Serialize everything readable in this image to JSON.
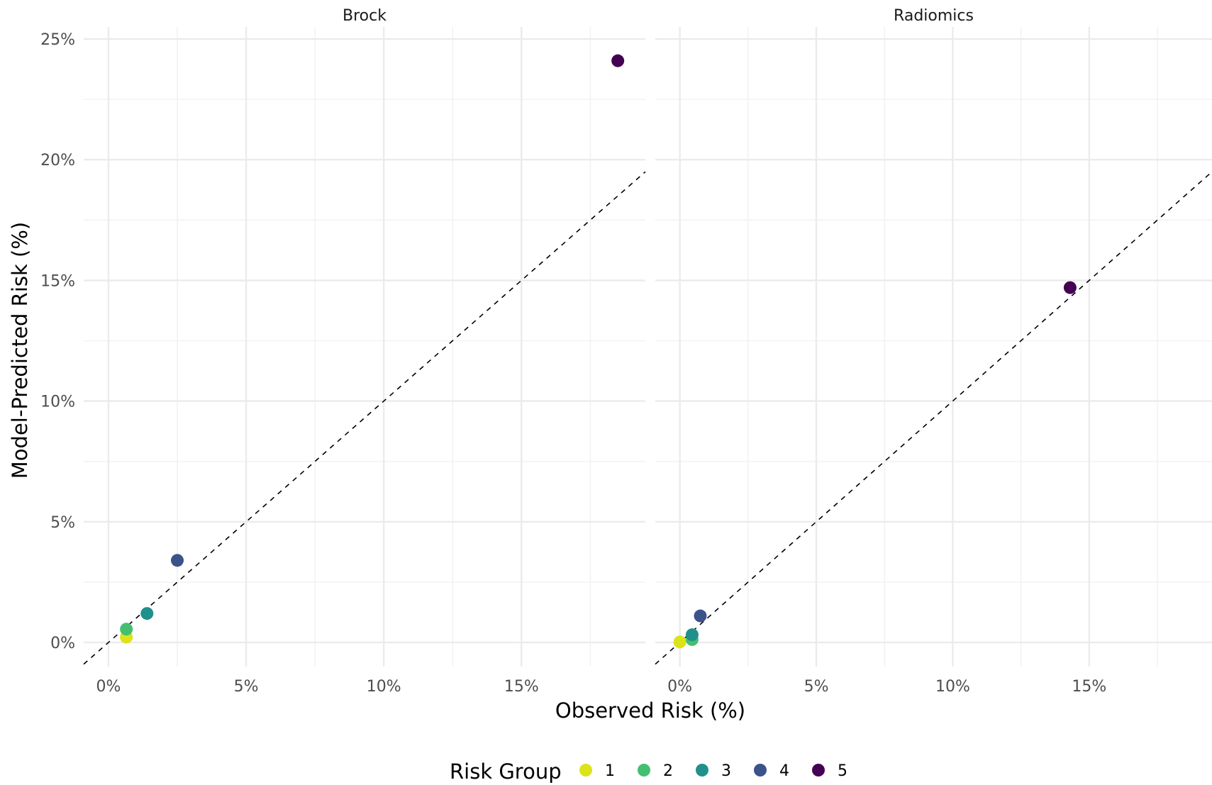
{
  "chart_data": {
    "type": "scatter",
    "x_label": "Observed Risk (%)",
    "y_label": "Model-Predicted Risk (%)",
    "legend_title": "Risk Group",
    "legend_position": "bottom",
    "grid": true,
    "reference_line": "y = x (dashed)",
    "xlim": [
      -0.9,
      19.5
    ],
    "ylim": [
      -1.0,
      25.5
    ],
    "x_ticks": [
      {
        "value": 0,
        "label": "0%"
      },
      {
        "value": 5,
        "label": "5%"
      },
      {
        "value": 10,
        "label": "10%"
      },
      {
        "value": 15,
        "label": "15%"
      }
    ],
    "y_ticks": [
      {
        "value": 0,
        "label": "0%"
      },
      {
        "value": 5,
        "label": "5%"
      },
      {
        "value": 10,
        "label": "10%"
      },
      {
        "value": 15,
        "label": "15%"
      },
      {
        "value": 20,
        "label": "20%"
      },
      {
        "value": 25,
        "label": "25%"
      }
    ],
    "groups": [
      {
        "name": "1",
        "color": "#dce319"
      },
      {
        "name": "2",
        "color": "#44bf70"
      },
      {
        "name": "3",
        "color": "#21908c"
      },
      {
        "name": "4",
        "color": "#3b528b"
      },
      {
        "name": "5",
        "color": "#440154"
      }
    ],
    "panels": [
      {
        "title": "Brock",
        "points": [
          {
            "group": "1",
            "x": 0.65,
            "y": 0.22
          },
          {
            "group": "2",
            "x": 0.65,
            "y": 0.55
          },
          {
            "group": "3",
            "x": 1.4,
            "y": 1.2
          },
          {
            "group": "4",
            "x": 2.5,
            "y": 3.4
          },
          {
            "group": "5",
            "x": 18.5,
            "y": 24.1
          }
        ]
      },
      {
        "title": "Radiomics",
        "points": [
          {
            "group": "1",
            "x": 0.0,
            "y": 0.02
          },
          {
            "group": "2",
            "x": 0.45,
            "y": 0.12
          },
          {
            "group": "3",
            "x": 0.45,
            "y": 0.32
          },
          {
            "group": "4",
            "x": 0.75,
            "y": 1.1
          },
          {
            "group": "5",
            "x": 14.3,
            "y": 14.7
          }
        ]
      }
    ]
  }
}
